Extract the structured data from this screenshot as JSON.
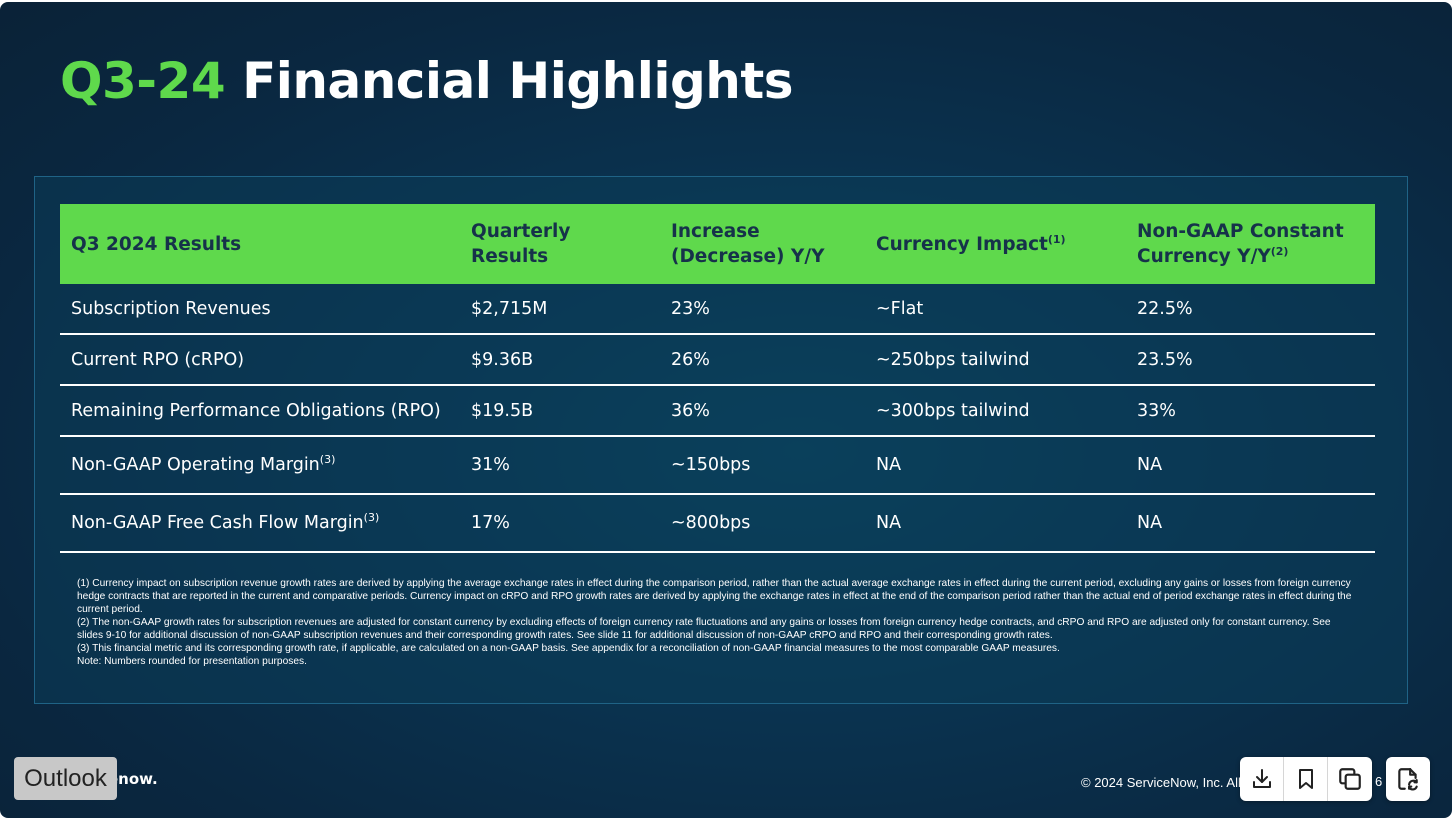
{
  "slide": {
    "title_accent": "Q3-24",
    "title_rest": "Financial Highlights",
    "colors": {
      "accent_green": "#5fd94c",
      "background": "#0a2a42",
      "header_text": "#16324a"
    }
  },
  "table": {
    "headers": [
      {
        "text": "Q3 2024 Results",
        "sup": ""
      },
      {
        "text": "Quarterly Results",
        "sup": ""
      },
      {
        "text": "Increase (Decrease) Y/Y",
        "sup": ""
      },
      {
        "text": "Currency Impact",
        "sup": "(1)"
      },
      {
        "text": "Non-GAAP Constant Currency Y/Y",
        "sup": "(2)"
      }
    ],
    "rows": [
      {
        "metric": "Subscription Revenues",
        "sup": "",
        "quarterly": "$2,715M",
        "change": "23%",
        "currency": "~Flat",
        "constant": "22.5%"
      },
      {
        "metric": "Current RPO (cRPO)",
        "sup": "",
        "quarterly": "$9.36B",
        "change": "26%",
        "currency": "~250bps tailwind",
        "constant": "23.5%"
      },
      {
        "metric": "Remaining Performance Obligations (RPO)",
        "sup": "",
        "quarterly": "$19.5B",
        "change": "36%",
        "currency": "~300bps tailwind",
        "constant": "33%"
      },
      {
        "metric": "Non-GAAP Operating Margin",
        "sup": "(3)",
        "quarterly": "31%",
        "change": "~150bps",
        "currency": "NA",
        "constant": "NA"
      },
      {
        "metric": "Non-GAAP Free Cash Flow Margin",
        "sup": "(3)",
        "quarterly": "17%",
        "change": "~800bps",
        "currency": "NA",
        "constant": "NA"
      }
    ]
  },
  "footnotes": [
    "(1) Currency impact on subscription revenue growth rates are derived by applying the average exchange rates in effect during the comparison period, rather than the actual average exchange rates in effect during the current period, excluding any gains or losses from foreign currency hedge contracts that are reported in the current and comparative periods. Currency impact on cRPO and RPO growth rates are derived by applying the exchange rates in effect at the end of the comparison period rather than the actual end of period exchange rates in effect during the current period.",
    "(2) The non-GAAP growth rates for subscription revenues are adjusted for constant currency by excluding effects of foreign currency rate fluctuations and any gains or losses from foreign currency hedge contracts, and cRPO and RPO are adjusted only for constant currency. See slides 9-10 for additional discussion of non-GAAP subscription revenues and their corresponding growth rates. See slide 11 for additional discussion of non-GAAP cRPO and RPO and their corresponding growth rates.",
    "(3) This financial metric and its corresponding growth rate, if applicable, are calculated on a non-GAAP basis. See appendix for a reconciliation of non-GAAP financial measures to the most comparable GAAP measures.",
    "Note: Numbers rounded for presentation purposes."
  ],
  "footer": {
    "logo_text": "enow.",
    "outlook_label": "Outlook",
    "copyright": "© 2024 ServiceNow, Inc. All",
    "page_number": "6"
  },
  "toolbar": {
    "icons": [
      "download-icon",
      "bookmark-icon",
      "copy-icon"
    ],
    "extension_icon": "document-sync-icon"
  }
}
